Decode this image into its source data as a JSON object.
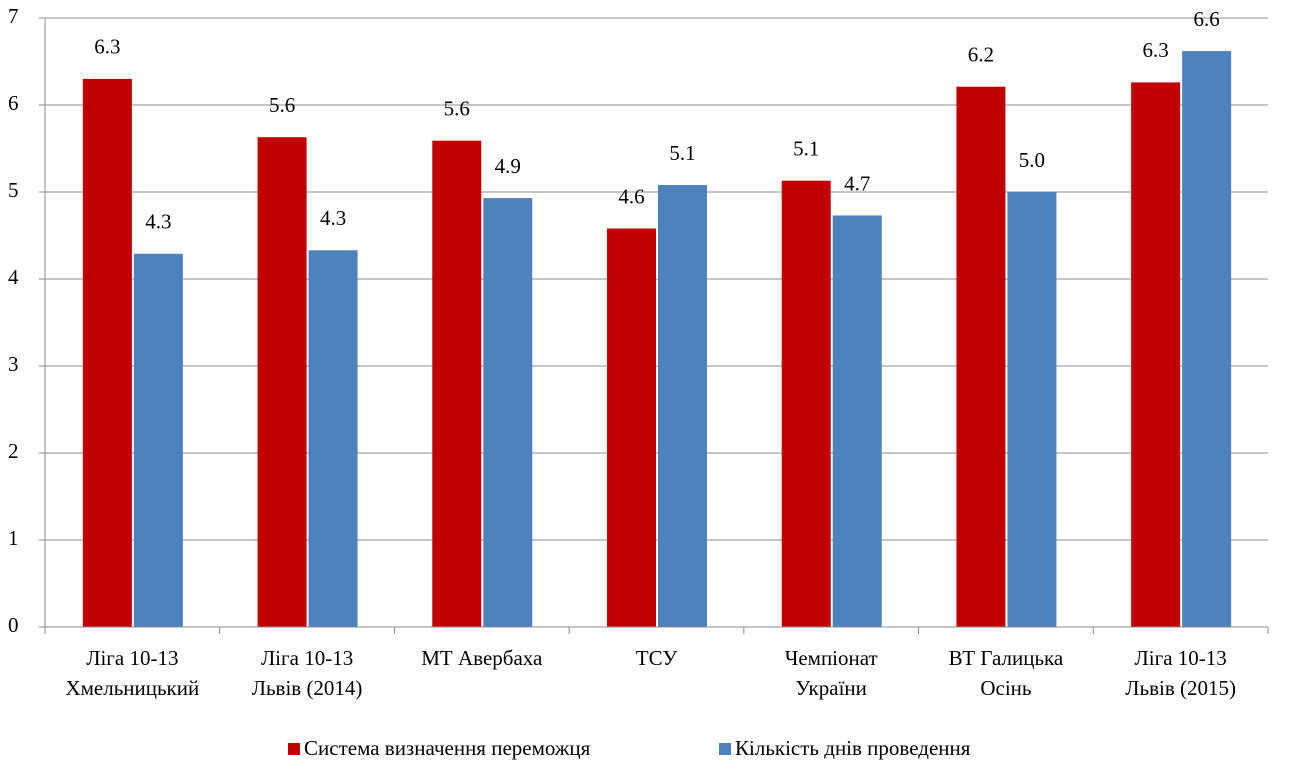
{
  "chart_data": {
    "type": "bar",
    "categories": [
      [
        "Ліга 10-13",
        "Хмельницький"
      ],
      [
        "Ліга 10-13",
        "Львів (2014)"
      ],
      [
        "МТ Авербаха"
      ],
      [
        "ТСУ"
      ],
      [
        "Чемпіонат",
        "України"
      ],
      [
        "ВТ Галицька",
        "Осінь"
      ],
      [
        "Ліга 10-13",
        "Львів (2015)"
      ]
    ],
    "series": [
      {
        "name": "Система визначення переможця",
        "color": "#c00000",
        "values": [
          6.3,
          5.63,
          5.59,
          4.58,
          5.13,
          6.21,
          6.26
        ],
        "value_labels": [
          "6.3",
          "5.6",
          "5.6",
          "4.6",
          "5.1",
          "6.2",
          "6.3"
        ]
      },
      {
        "name": "Кількість днів проведення",
        "color": "#4f81bd",
        "values": [
          4.29,
          4.33,
          4.93,
          5.08,
          4.73,
          5.0,
          6.62
        ],
        "value_labels": [
          "4.3",
          "4.3",
          "4.9",
          "5.1",
          "4.7",
          "5.0",
          "6.6"
        ]
      }
    ],
    "ylim": [
      0,
      7
    ],
    "yticks": [
      0,
      1,
      2,
      3,
      4,
      5,
      6,
      7
    ],
    "grid": true,
    "legend": "bottom"
  }
}
